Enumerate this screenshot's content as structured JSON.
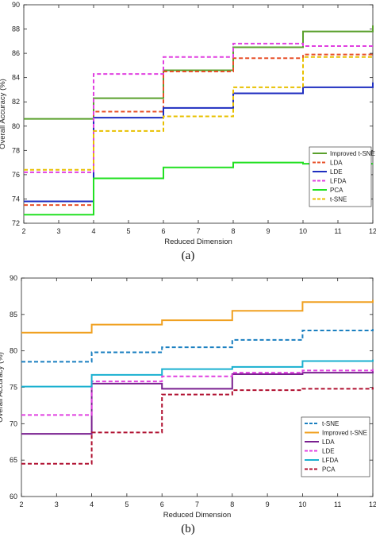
{
  "chart_data": [
    {
      "type": "line",
      "step": true,
      "xlabel": "Reduced Dimension",
      "ylabel": "Overall Accuracy (%)",
      "xlim": [
        2,
        12
      ],
      "ylim": [
        72,
        90
      ],
      "xticks": [
        2,
        3,
        4,
        5,
        6,
        7,
        8,
        9,
        10,
        11,
        12
      ],
      "yticks": [
        72,
        74,
        76,
        78,
        80,
        82,
        84,
        86,
        88,
        90
      ],
      "grid": false,
      "legend_position": "right-middle",
      "x": [
        2,
        4,
        6,
        8,
        10,
        12
      ],
      "series": [
        {
          "name": "Improved t-SNE",
          "color": "#5aa02c",
          "dash": "solid",
          "values": [
            80.6,
            82.3,
            84.6,
            86.5,
            87.8,
            88.3
          ]
        },
        {
          "name": "LDA",
          "color": "#e8502a",
          "dash": "dash",
          "values": [
            73.5,
            81.2,
            84.5,
            85.6,
            85.9,
            86.0
          ]
        },
        {
          "name": "LDE",
          "color": "#1f2ec0",
          "dash": "solid",
          "values": [
            73.8,
            80.7,
            81.5,
            82.7,
            83.2,
            83.6
          ]
        },
        {
          "name": "LFDA",
          "color": "#e040e0",
          "dash": "dash",
          "values": [
            76.2,
            84.3,
            85.7,
            86.8,
            86.6,
            86.6
          ]
        },
        {
          "name": "PCA",
          "color": "#22e022",
          "dash": "solid",
          "values": [
            72.7,
            75.7,
            76.6,
            77.0,
            76.9,
            76.9
          ]
        },
        {
          "name": "t-SNE",
          "color": "#e8c000",
          "dash": "dash",
          "values": [
            76.4,
            79.6,
            80.8,
            83.2,
            85.7,
            85.8
          ]
        }
      ],
      "caption": "(a)"
    },
    {
      "type": "line",
      "step": true,
      "xlabel": "Reduced Dimension",
      "ylabel": "Overall Accuracy (%)",
      "xlim": [
        2,
        12
      ],
      "ylim": [
        60,
        90
      ],
      "xticks": [
        2,
        3,
        4,
        5,
        6,
        7,
        8,
        9,
        10,
        11,
        12
      ],
      "yticks": [
        60,
        65,
        70,
        75,
        80,
        85,
        90
      ],
      "grid": false,
      "legend_position": "right-lower",
      "x": [
        2,
        4,
        6,
        8,
        10,
        12
      ],
      "series": [
        {
          "name": "t-SNE",
          "color": "#1a7fc0",
          "dash": "dash",
          "values": [
            78.5,
            79.8,
            80.5,
            81.5,
            82.8,
            83.0
          ]
        },
        {
          "name": "Improved t-SNE",
          "color": "#f0a020",
          "dash": "solid",
          "values": [
            82.5,
            83.6,
            84.2,
            85.5,
            86.7,
            87.0
          ]
        },
        {
          "name": "LDA",
          "color": "#7a2090",
          "dash": "solid",
          "values": [
            68.6,
            75.5,
            74.8,
            76.8,
            77.0,
            77.2
          ]
        },
        {
          "name": "LDE",
          "color": "#e040e0",
          "dash": "dash",
          "values": [
            71.2,
            75.8,
            76.5,
            77.0,
            77.3,
            77.5
          ]
        },
        {
          "name": "LFDA",
          "color": "#1ab0d0",
          "dash": "solid",
          "values": [
            75.1,
            76.7,
            77.5,
            77.8,
            78.6,
            78.8
          ]
        },
        {
          "name": "PCA",
          "color": "#b01030",
          "dash": "dash",
          "values": [
            64.5,
            68.8,
            74.0,
            74.6,
            74.8,
            75.0
          ]
        }
      ],
      "caption": "(b)"
    }
  ]
}
